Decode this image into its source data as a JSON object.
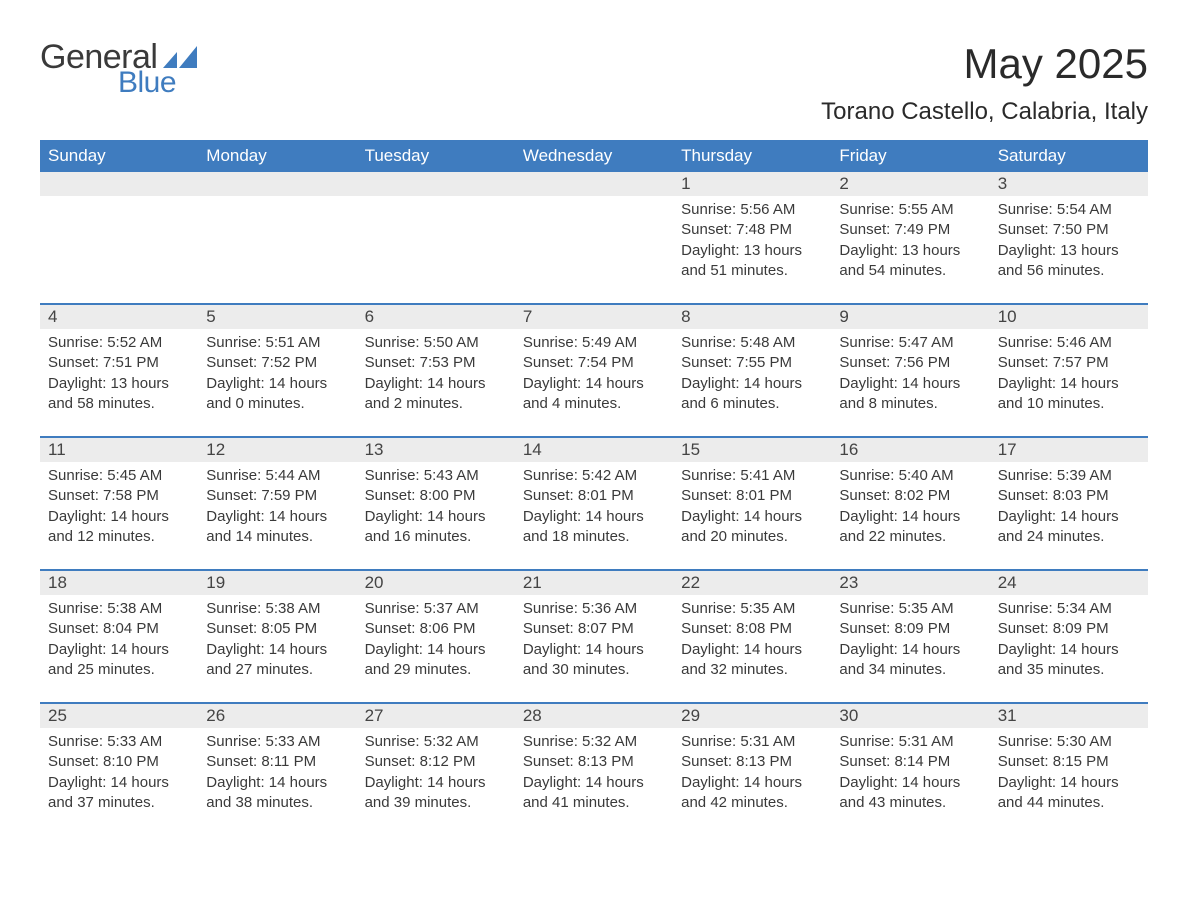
{
  "logo": {
    "word1": "General",
    "word2": "Blue"
  },
  "title": "May 2025",
  "location": "Torano Castello, Calabria, Italy",
  "colors": {
    "header_bg": "#3f7cbf",
    "header_fg": "#ffffff",
    "daynum_bg": "#ececec",
    "text": "#3a3a3a",
    "logo_blue": "#3f7cbf"
  },
  "font": {
    "title_size_pt": 32,
    "location_size_pt": 18,
    "header_size_pt": 13,
    "body_size_pt": 11
  },
  "layout": {
    "columns": 7,
    "rows": 5,
    "first_day_column_index": 4
  },
  "day_headers": [
    "Sunday",
    "Monday",
    "Tuesday",
    "Wednesday",
    "Thursday",
    "Friday",
    "Saturday"
  ],
  "weeks": [
    [
      null,
      null,
      null,
      null,
      {
        "n": "1",
        "sunrise": "Sunrise: 5:56 AM",
        "sunset": "Sunset: 7:48 PM",
        "daylight": "Daylight: 13 hours and 51 minutes."
      },
      {
        "n": "2",
        "sunrise": "Sunrise: 5:55 AM",
        "sunset": "Sunset: 7:49 PM",
        "daylight": "Daylight: 13 hours and 54 minutes."
      },
      {
        "n": "3",
        "sunrise": "Sunrise: 5:54 AM",
        "sunset": "Sunset: 7:50 PM",
        "daylight": "Daylight: 13 hours and 56 minutes."
      }
    ],
    [
      {
        "n": "4",
        "sunrise": "Sunrise: 5:52 AM",
        "sunset": "Sunset: 7:51 PM",
        "daylight": "Daylight: 13 hours and 58 minutes."
      },
      {
        "n": "5",
        "sunrise": "Sunrise: 5:51 AM",
        "sunset": "Sunset: 7:52 PM",
        "daylight": "Daylight: 14 hours and 0 minutes."
      },
      {
        "n": "6",
        "sunrise": "Sunrise: 5:50 AM",
        "sunset": "Sunset: 7:53 PM",
        "daylight": "Daylight: 14 hours and 2 minutes."
      },
      {
        "n": "7",
        "sunrise": "Sunrise: 5:49 AM",
        "sunset": "Sunset: 7:54 PM",
        "daylight": "Daylight: 14 hours and 4 minutes."
      },
      {
        "n": "8",
        "sunrise": "Sunrise: 5:48 AM",
        "sunset": "Sunset: 7:55 PM",
        "daylight": "Daylight: 14 hours and 6 minutes."
      },
      {
        "n": "9",
        "sunrise": "Sunrise: 5:47 AM",
        "sunset": "Sunset: 7:56 PM",
        "daylight": "Daylight: 14 hours and 8 minutes."
      },
      {
        "n": "10",
        "sunrise": "Sunrise: 5:46 AM",
        "sunset": "Sunset: 7:57 PM",
        "daylight": "Daylight: 14 hours and 10 minutes."
      }
    ],
    [
      {
        "n": "11",
        "sunrise": "Sunrise: 5:45 AM",
        "sunset": "Sunset: 7:58 PM",
        "daylight": "Daylight: 14 hours and 12 minutes."
      },
      {
        "n": "12",
        "sunrise": "Sunrise: 5:44 AM",
        "sunset": "Sunset: 7:59 PM",
        "daylight": "Daylight: 14 hours and 14 minutes."
      },
      {
        "n": "13",
        "sunrise": "Sunrise: 5:43 AM",
        "sunset": "Sunset: 8:00 PM",
        "daylight": "Daylight: 14 hours and 16 minutes."
      },
      {
        "n": "14",
        "sunrise": "Sunrise: 5:42 AM",
        "sunset": "Sunset: 8:01 PM",
        "daylight": "Daylight: 14 hours and 18 minutes."
      },
      {
        "n": "15",
        "sunrise": "Sunrise: 5:41 AM",
        "sunset": "Sunset: 8:01 PM",
        "daylight": "Daylight: 14 hours and 20 minutes."
      },
      {
        "n": "16",
        "sunrise": "Sunrise: 5:40 AM",
        "sunset": "Sunset: 8:02 PM",
        "daylight": "Daylight: 14 hours and 22 minutes."
      },
      {
        "n": "17",
        "sunrise": "Sunrise: 5:39 AM",
        "sunset": "Sunset: 8:03 PM",
        "daylight": "Daylight: 14 hours and 24 minutes."
      }
    ],
    [
      {
        "n": "18",
        "sunrise": "Sunrise: 5:38 AM",
        "sunset": "Sunset: 8:04 PM",
        "daylight": "Daylight: 14 hours and 25 minutes."
      },
      {
        "n": "19",
        "sunrise": "Sunrise: 5:38 AM",
        "sunset": "Sunset: 8:05 PM",
        "daylight": "Daylight: 14 hours and 27 minutes."
      },
      {
        "n": "20",
        "sunrise": "Sunrise: 5:37 AM",
        "sunset": "Sunset: 8:06 PM",
        "daylight": "Daylight: 14 hours and 29 minutes."
      },
      {
        "n": "21",
        "sunrise": "Sunrise: 5:36 AM",
        "sunset": "Sunset: 8:07 PM",
        "daylight": "Daylight: 14 hours and 30 minutes."
      },
      {
        "n": "22",
        "sunrise": "Sunrise: 5:35 AM",
        "sunset": "Sunset: 8:08 PM",
        "daylight": "Daylight: 14 hours and 32 minutes."
      },
      {
        "n": "23",
        "sunrise": "Sunrise: 5:35 AM",
        "sunset": "Sunset: 8:09 PM",
        "daylight": "Daylight: 14 hours and 34 minutes."
      },
      {
        "n": "24",
        "sunrise": "Sunrise: 5:34 AM",
        "sunset": "Sunset: 8:09 PM",
        "daylight": "Daylight: 14 hours and 35 minutes."
      }
    ],
    [
      {
        "n": "25",
        "sunrise": "Sunrise: 5:33 AM",
        "sunset": "Sunset: 8:10 PM",
        "daylight": "Daylight: 14 hours and 37 minutes."
      },
      {
        "n": "26",
        "sunrise": "Sunrise: 5:33 AM",
        "sunset": "Sunset: 8:11 PM",
        "daylight": "Daylight: 14 hours and 38 minutes."
      },
      {
        "n": "27",
        "sunrise": "Sunrise: 5:32 AM",
        "sunset": "Sunset: 8:12 PM",
        "daylight": "Daylight: 14 hours and 39 minutes."
      },
      {
        "n": "28",
        "sunrise": "Sunrise: 5:32 AM",
        "sunset": "Sunset: 8:13 PM",
        "daylight": "Daylight: 14 hours and 41 minutes."
      },
      {
        "n": "29",
        "sunrise": "Sunrise: 5:31 AM",
        "sunset": "Sunset: 8:13 PM",
        "daylight": "Daylight: 14 hours and 42 minutes."
      },
      {
        "n": "30",
        "sunrise": "Sunrise: 5:31 AM",
        "sunset": "Sunset: 8:14 PM",
        "daylight": "Daylight: 14 hours and 43 minutes."
      },
      {
        "n": "31",
        "sunrise": "Sunrise: 5:30 AM",
        "sunset": "Sunset: 8:15 PM",
        "daylight": "Daylight: 14 hours and 44 minutes."
      }
    ]
  ]
}
